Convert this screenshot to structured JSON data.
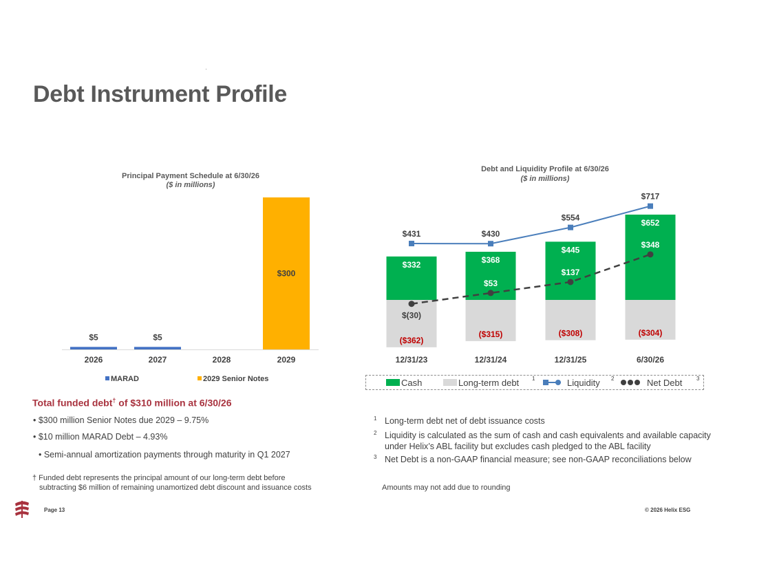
{
  "page": {
    "title": "Debt Instrument Profile",
    "page_label": "Page 13",
    "copyright": "© 2026 Helix ESG"
  },
  "funded": {
    "heading_pre": "Total funded debt",
    "heading_mark": "†",
    "heading_post": " of $310 million at 6/30/26",
    "bullets": [
      "•   $300 million Senior Notes due 2029 – 9.75%",
      "•   $10 million MARAD Debt – 4.93%",
      "•    Semi-annual amortization payments through maturity in Q1 2027"
    ],
    "dagger_note_1": "† Funded debt represents the principal amount of our long-term debt before",
    "dagger_note_2": "subtracting $6 million of remaining unamortized debt discount and issuance costs"
  },
  "footnotes": [
    {
      "num": "1",
      "lines": [
        "Long-term debt net of debt issuance costs"
      ]
    },
    {
      "num": "2",
      "lines": [
        "Liquidity is calculated as the sum of cash and cash equivalents and available capacity",
        "under Helix’s ABL facility but excludes cash pledged to the ABL facility"
      ]
    },
    {
      "num": "3",
      "lines": [
        "Net Debt is a non-GAAP financial measure; see non-GAAP reconciliations below"
      ]
    }
  ],
  "rounding_note": "Amounts may not add due to rounding",
  "colors": {
    "marad": "#4472c4",
    "senior_notes": "#ffb000",
    "cash": "#00b050",
    "long_term_debt": "#d9d9d9",
    "liquidity": "#4a7ebb",
    "net_debt": "#404040",
    "negative_label": "#c00000",
    "accent_red": "#a8323e"
  },
  "chart_data": [
    {
      "type": "bar",
      "title": "Principal Payment Schedule at 6/30/26",
      "subtitle": "($ in millions)",
      "categories": [
        "2026",
        "2027",
        "2028",
        "2029"
      ],
      "series": [
        {
          "name": "MARAD",
          "values": [
            5,
            5,
            0,
            0
          ]
        },
        {
          "name": "2029 Senior Notes",
          "values": [
            0,
            0,
            0,
            300
          ]
        }
      ],
      "data_labels": [
        "$5",
        "$5",
        "",
        "$300"
      ],
      "ylim": [
        0,
        300
      ],
      "grid": false,
      "legend": "bottom"
    },
    {
      "type": "bar",
      "title": "Debt and Liquidity Profile at 6/30/26",
      "subtitle": "($ in millions)",
      "categories": [
        "12/31/23",
        "12/31/24",
        "12/31/25",
        "6/30/26"
      ],
      "series": [
        {
          "name": "Cash",
          "values": [
            332,
            368,
            445,
            652
          ],
          "labels": [
            "$332",
            "$368",
            "$445",
            "$652"
          ]
        },
        {
          "name": "Long-term debt",
          "note": "1",
          "values": [
            -362,
            -315,
            -308,
            -304
          ],
          "labels": [
            "($362)",
            "($315)",
            "($308)",
            "($304)"
          ]
        },
        {
          "name": "Liquidity",
          "note": "2",
          "type": "line",
          "values": [
            431,
            430,
            554,
            717
          ],
          "labels": [
            "$431",
            "$430",
            "$554",
            "$717"
          ]
        },
        {
          "name": "Net Debt",
          "note": "3",
          "type": "line",
          "values": [
            -30,
            53,
            137,
            348
          ],
          "labels": [
            "$(30)",
            "$53",
            "$137",
            "$348"
          ]
        }
      ],
      "grid": false,
      "legend": "bottom"
    }
  ]
}
